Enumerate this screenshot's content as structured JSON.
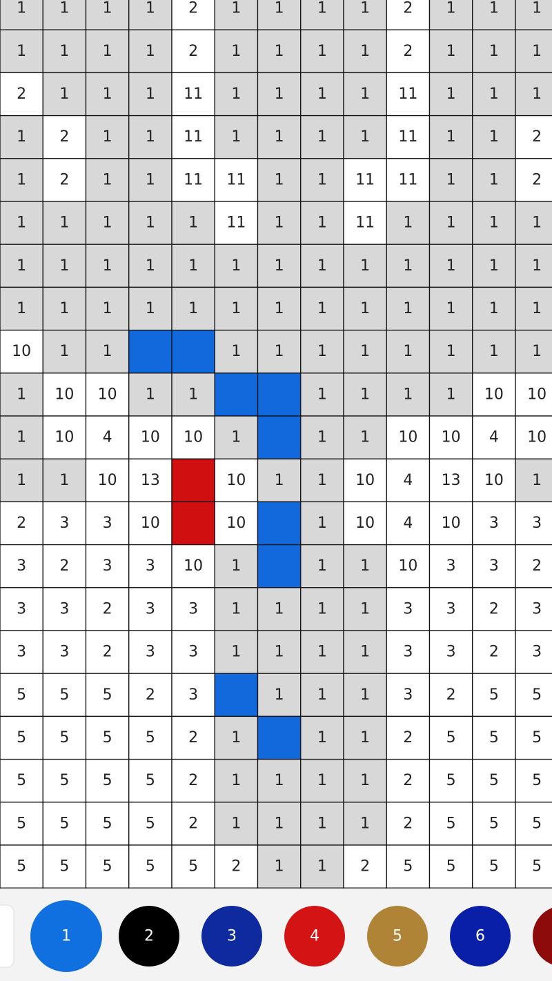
{
  "grid": {
    "rows": [
      [
        "1",
        "1",
        "1",
        "1",
        "2",
        "1",
        "1",
        "1",
        "1",
        "2",
        "1",
        "1",
        "1"
      ],
      [
        "1",
        "1",
        "1",
        "1",
        "2",
        "1",
        "1",
        "1",
        "1",
        "2",
        "1",
        "1",
        "1"
      ],
      [
        "2",
        "1",
        "1",
        "1",
        "11",
        "1",
        "1",
        "1",
        "1",
        "11",
        "1",
        "1",
        "1"
      ],
      [
        "1",
        "2",
        "1",
        "1",
        "11",
        "1",
        "1",
        "1",
        "1",
        "11",
        "1",
        "1",
        "2"
      ],
      [
        "1",
        "2",
        "1",
        "1",
        "11",
        "11",
        "1",
        "1",
        "11",
        "11",
        "1",
        "1",
        "2"
      ],
      [
        "1",
        "1",
        "1",
        "1",
        "1",
        "11",
        "1",
        "1",
        "11",
        "1",
        "1",
        "1",
        "1"
      ],
      [
        "1",
        "1",
        "1",
        "1",
        "1",
        "1",
        "1",
        "1",
        "1",
        "1",
        "1",
        "1",
        "1"
      ],
      [
        "1",
        "1",
        "1",
        "1",
        "1",
        "1",
        "1",
        "1",
        "1",
        "1",
        "1",
        "1",
        "1"
      ],
      [
        "10",
        "1",
        "1",
        {
          "color": "#1169dc"
        },
        {
          "color": "#1169dc"
        },
        "1",
        "1",
        "1",
        "1",
        "1",
        "1",
        "1",
        "1"
      ],
      [
        "1",
        "10",
        "10",
        "1",
        "1",
        {
          "color": "#1169dc"
        },
        {
          "color": "#1169dc"
        },
        "1",
        "1",
        "1",
        "1",
        "10",
        "10"
      ],
      [
        "1",
        "10",
        "4",
        "10",
        "10",
        "1",
        {
          "color": "#1169dc"
        },
        "1",
        "1",
        "10",
        "10",
        "4",
        "10"
      ],
      [
        "1",
        "1",
        "10",
        "13",
        {
          "color": "#d01010"
        },
        "10",
        "1",
        "1",
        "10",
        "4",
        "13",
        "10",
        "1"
      ],
      [
        "2",
        "3",
        "3",
        "10",
        {
          "color": "#d01010"
        },
        "10",
        {
          "color": "#1169dc"
        },
        "1",
        "10",
        "4",
        "10",
        "3",
        "3"
      ],
      [
        "3",
        "2",
        "3",
        "3",
        "10",
        "1",
        {
          "color": "#1169dc"
        },
        "1",
        "1",
        "10",
        "3",
        "3",
        "2"
      ],
      [
        "3",
        "3",
        "2",
        "3",
        "3",
        "1",
        "1",
        "1",
        "1",
        "3",
        "3",
        "2",
        "3"
      ],
      [
        "3",
        "3",
        "2",
        "3",
        "3",
        "1",
        "1",
        "1",
        "1",
        "3",
        "3",
        "2",
        "3"
      ],
      [
        "5",
        "5",
        "5",
        "2",
        "3",
        {
          "color": "#1169dc"
        },
        "1",
        "1",
        "1",
        "3",
        "2",
        "5",
        "5"
      ],
      [
        "5",
        "5",
        "5",
        "5",
        "2",
        "1",
        {
          "color": "#1169dc"
        },
        "1",
        "1",
        "2",
        "5",
        "5",
        "5"
      ],
      [
        "5",
        "5",
        "5",
        "5",
        "2",
        "1",
        "1",
        "1",
        "1",
        "2",
        "5",
        "5",
        "5"
      ],
      [
        "5",
        "5",
        "5",
        "5",
        "2",
        "1",
        "1",
        "1",
        "1",
        "2",
        "5",
        "5",
        "5"
      ],
      [
        "5",
        "5",
        "5",
        "5",
        "5",
        "2",
        "1",
        "1",
        "2",
        "5",
        "5",
        "5",
        "5"
      ]
    ]
  },
  "palette": [
    {
      "label": "1",
      "color": "#1170e0",
      "selected": true
    },
    {
      "label": "2",
      "color": "#000000"
    },
    {
      "label": "3",
      "color": "#0e2a9e"
    },
    {
      "label": "4",
      "color": "#d41414"
    },
    {
      "label": "5",
      "color": "#b08436"
    },
    {
      "label": "6",
      "color": "#0a1fa8"
    }
  ]
}
